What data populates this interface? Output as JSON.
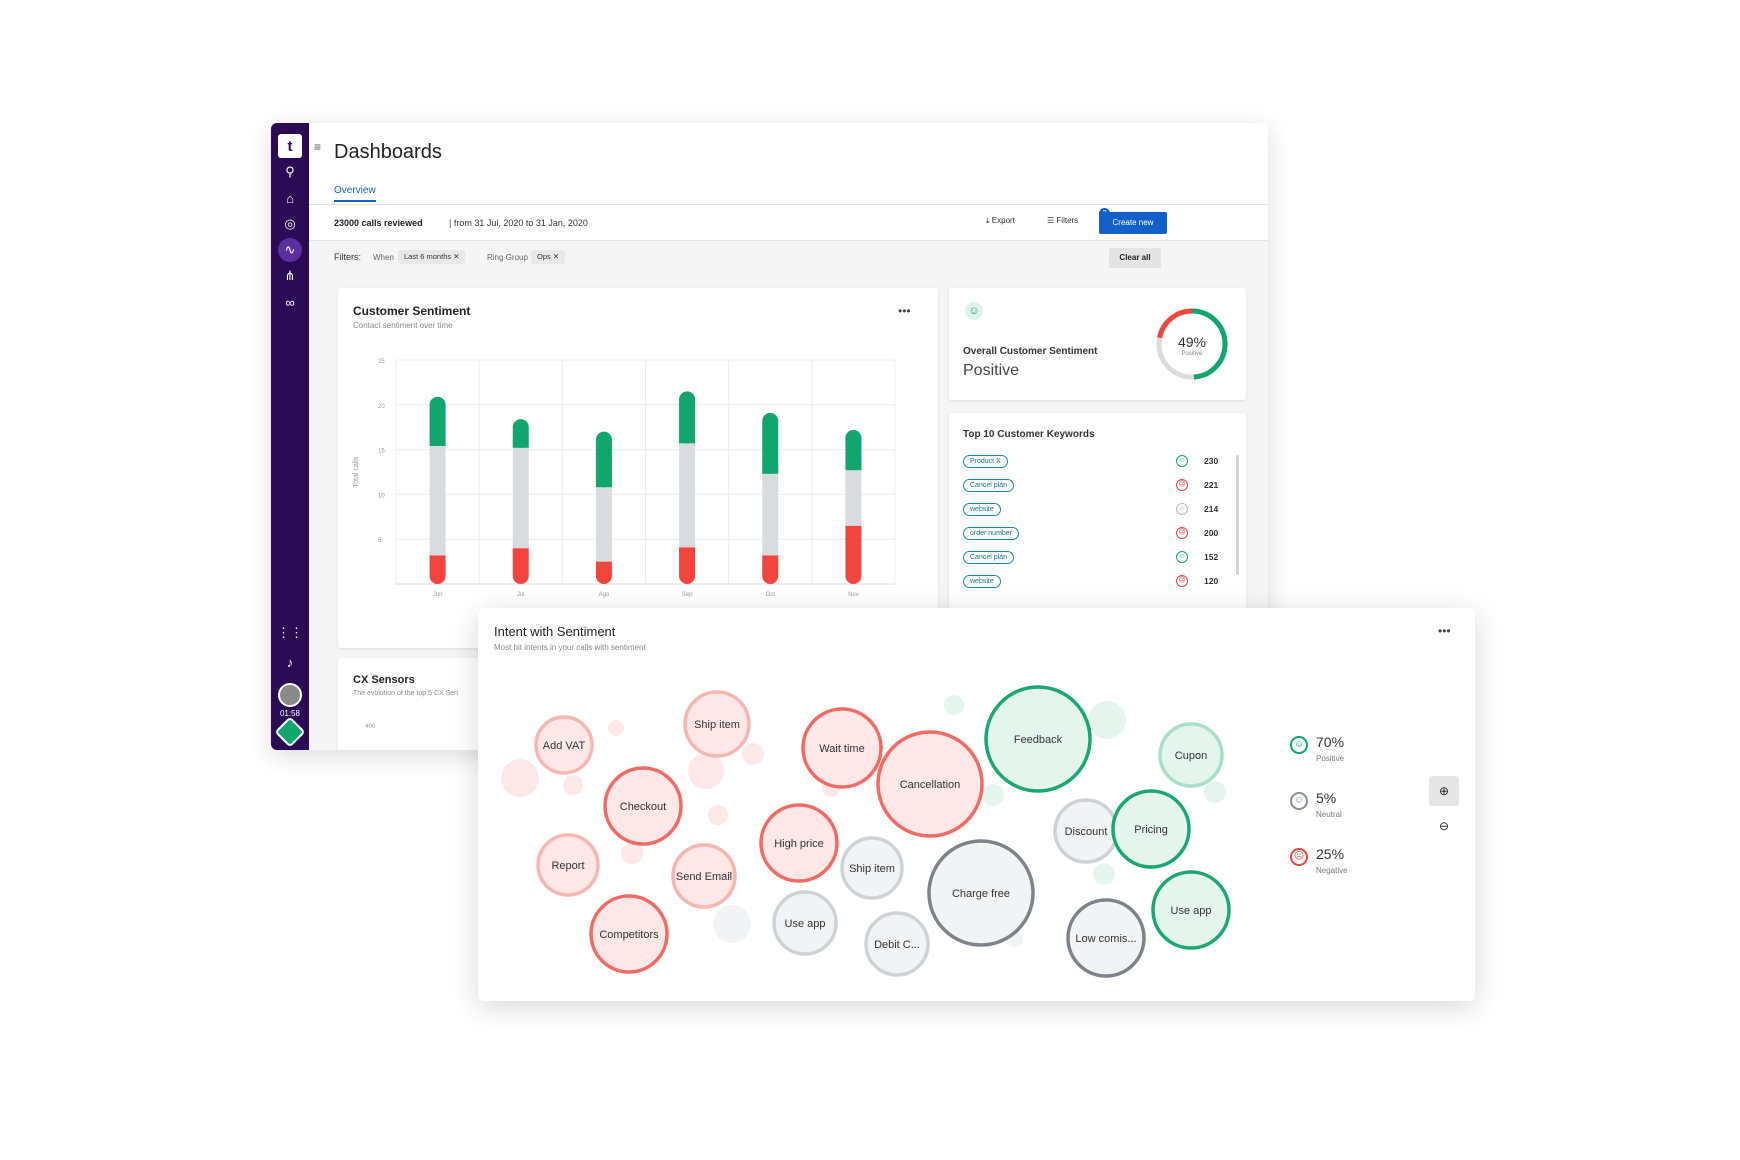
{
  "app": {
    "logo_text": "t",
    "page_title": "Dashboards",
    "tabs": [
      {
        "label": "Overview"
      }
    ],
    "timer": "01:58"
  },
  "summary": {
    "calls_reviewed": "23000 calls reviewed",
    "date_range": "| from 31 Jul, 2020 to 31 Jan, 2020",
    "export_label": "Export",
    "filters_label": "Filters",
    "filters_count": "2",
    "create_label": "Create new"
  },
  "filters": {
    "label": "Filters:",
    "when_label": "When",
    "when_value": "Last 6 months ✕",
    "ring_label": "Ring Group",
    "ring_value": "Ops ✕",
    "clear_label": "Clear all"
  },
  "customer_sentiment": {
    "title": "Customer Sentiment",
    "subtitle": "Contact sentiment over time",
    "menu": "•••"
  },
  "chart_data": {
    "type": "bar",
    "stacked": true,
    "categories": [
      "Jun",
      "Jul",
      "Ago",
      "Sep",
      "Oct",
      "Nov"
    ],
    "ylabel": "Total calls",
    "yticks": [
      5,
      10,
      15,
      20,
      25
    ],
    "ylim": [
      0,
      25
    ],
    "grid": true,
    "series": [
      {
        "name": "Negative",
        "color": "#f2453d",
        "values": [
          3.2,
          4,
          2.5,
          4.1,
          3.2,
          6.5
        ]
      },
      {
        "name": "Neutral",
        "color": "#d9dcdf",
        "values": [
          12.2,
          11.2,
          8.3,
          11.6,
          9.1,
          6.2
        ]
      },
      {
        "name": "Positive",
        "color": "#12a56e",
        "values": [
          5.5,
          3.2,
          6.2,
          5.8,
          6.8,
          4.5
        ]
      }
    ]
  },
  "overall": {
    "title": "Overall Customer Sentiment",
    "value": "Positive",
    "percent": "49%",
    "percent_label": "Positive",
    "positive_fraction": 0.49,
    "negative_fraction": 0.22
  },
  "keywords": {
    "title": "Top 10 Customer Keywords",
    "items": [
      {
        "tag": "Product X",
        "sentiment": "positive",
        "count": "230"
      },
      {
        "tag": "Cancel plan",
        "sentiment": "negative",
        "count": "221"
      },
      {
        "tag": "website",
        "sentiment": "neutral",
        "count": "214"
      },
      {
        "tag": "order number",
        "sentiment": "negative",
        "count": "200"
      },
      {
        "tag": "Cancel plan",
        "sentiment": "positive",
        "count": "152"
      },
      {
        "tag": "website",
        "sentiment": "negative",
        "count": "120"
      }
    ]
  },
  "cx_sensors": {
    "title": "CX Sensors",
    "subtitle": "The evolution of the top 5 CX Sen",
    "tick": "400"
  },
  "intent": {
    "title": "Intent with Sentiment",
    "subtitle": "Most hit intents in your calls with sentiment",
    "menu": "•••",
    "bubbles": [
      {
        "label": "Add VAT",
        "sentiment": "negative",
        "strength": "light"
      },
      {
        "label": "Ship item",
        "sentiment": "negative",
        "strength": "light"
      },
      {
        "label": "Wait time",
        "sentiment": "negative",
        "strength": "strong"
      },
      {
        "label": "Cancellation",
        "sentiment": "negative",
        "strength": "strong"
      },
      {
        "label": "Feedback",
        "sentiment": "positive",
        "strength": "strong"
      },
      {
        "label": "Cupon",
        "sentiment": "positive",
        "strength": "light"
      },
      {
        "label": "Checkout",
        "sentiment": "negative",
        "strength": "strong"
      },
      {
        "label": "High price",
        "sentiment": "negative",
        "strength": "strong"
      },
      {
        "label": "Discount",
        "sentiment": "neutral",
        "strength": "light"
      },
      {
        "label": "Pricing",
        "sentiment": "positive",
        "strength": "strong"
      },
      {
        "label": "Report",
        "sentiment": "negative",
        "strength": "light"
      },
      {
        "label": "Send Email",
        "sentiment": "negative",
        "strength": "light"
      },
      {
        "label": "Ship item",
        "sentiment": "neutral",
        "strength": "light"
      },
      {
        "label": "Charge free",
        "sentiment": "neutral",
        "strength": "strong"
      },
      {
        "label": "Use app",
        "sentiment": "positive",
        "strength": "strong"
      },
      {
        "label": "Competitors",
        "sentiment": "negative",
        "strength": "strong"
      },
      {
        "label": "Use app",
        "sentiment": "neutral",
        "strength": "light"
      },
      {
        "label": "Debit C...",
        "sentiment": "neutral",
        "strength": "light"
      },
      {
        "label": "Low comis...",
        "sentiment": "neutral",
        "strength": "strong"
      }
    ],
    "legend": [
      {
        "pct": "70%",
        "label": "Positive",
        "sentiment": "positive"
      },
      {
        "pct": "5%",
        "label": "Neutral",
        "sentiment": "neutral"
      },
      {
        "pct": "25%",
        "label": "Negative",
        "sentiment": "negative"
      }
    ]
  },
  "colors": {
    "positive": "#12a56e",
    "negative": "#f2453d",
    "neutral": "#8a8f96",
    "accent": "#1261c9",
    "sidebar": "#2b0b55"
  },
  "icons": {
    "smile": "☺",
    "frown": "☹",
    "zoom_in": "⊕",
    "zoom_out": "⊖",
    "download": "⤓",
    "filter": "☰",
    "menu": "≡"
  }
}
